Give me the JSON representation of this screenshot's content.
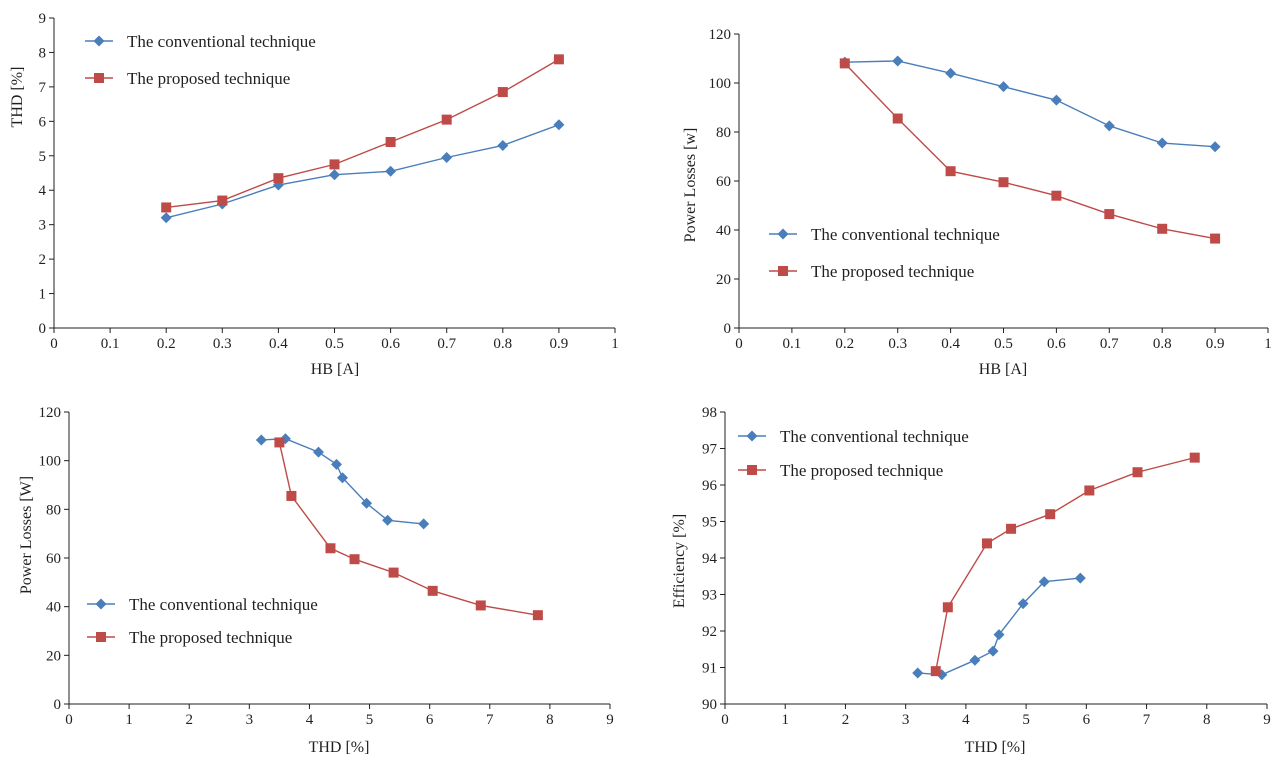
{
  "colors": {
    "conventional": "#4a7ebb",
    "proposed": "#be4b48",
    "axis": "#231f20"
  },
  "chart_data": [
    {
      "type": "line",
      "xlabel": "HB [A]",
      "ylabel": "THD [%]",
      "xlim": [
        0,
        1
      ],
      "ylim": [
        0,
        9
      ],
      "xticks": [
        "0",
        "0.1",
        "0.2",
        "0.3",
        "0.4",
        "0.5",
        "0.6",
        "0.7",
        "0.8",
        "0.9",
        "1"
      ],
      "yticks": [
        "0",
        "1",
        "2",
        "3",
        "4",
        "5",
        "6",
        "7",
        "8",
        "9"
      ],
      "legend_position": "top-left",
      "series": [
        {
          "name": "The conventional technique",
          "marker": "diamond",
          "x": [
            0.2,
            0.3,
            0.4,
            0.5,
            0.6,
            0.7,
            0.8,
            0.9
          ],
          "y": [
            3.2,
            3.6,
            4.15,
            4.45,
            4.55,
            4.95,
            5.3,
            5.9
          ]
        },
        {
          "name": "The proposed technique",
          "marker": "square",
          "x": [
            0.2,
            0.3,
            0.4,
            0.5,
            0.6,
            0.7,
            0.8,
            0.9
          ],
          "y": [
            3.5,
            3.7,
            4.35,
            4.75,
            5.4,
            6.05,
            6.85,
            7.8
          ]
        }
      ]
    },
    {
      "type": "line",
      "xlabel": "HB [A]",
      "ylabel": "Power Losses [w]",
      "xlim": [
        0,
        1
      ],
      "ylim": [
        0,
        120
      ],
      "xticks": [
        "0",
        "0.1",
        "0.2",
        "0.3",
        "0.4",
        "0.5",
        "0.6",
        "0.7",
        "0.8",
        "0.9",
        "1"
      ],
      "yticks": [
        "0",
        "20",
        "40",
        "60",
        "80",
        "100",
        "120"
      ],
      "legend_position": "lower-left",
      "series": [
        {
          "name": "The conventional technique",
          "marker": "diamond",
          "x": [
            0.2,
            0.3,
            0.4,
            0.5,
            0.6,
            0.7,
            0.8,
            0.9
          ],
          "y": [
            108.5,
            109,
            104,
            98.5,
            93,
            82.5,
            75.5,
            74
          ]
        },
        {
          "name": "The proposed technique",
          "marker": "square",
          "x": [
            0.2,
            0.3,
            0.4,
            0.5,
            0.6,
            0.7,
            0.8,
            0.9
          ],
          "y": [
            108,
            85.5,
            64,
            59.5,
            54,
            46.5,
            40.5,
            36.5
          ]
        }
      ]
    },
    {
      "type": "line",
      "xlabel": "THD [%]",
      "ylabel": "Power Losses [W]",
      "xlim": [
        0,
        9
      ],
      "ylim": [
        0,
        120
      ],
      "xticks": [
        "0",
        "1",
        "2",
        "3",
        "4",
        "5",
        "6",
        "7",
        "8",
        "9"
      ],
      "yticks": [
        "0",
        "20",
        "40",
        "60",
        "80",
        "100",
        "120"
      ],
      "legend_position": "lower-left",
      "series": [
        {
          "name": "The conventional technique",
          "marker": "diamond",
          "x": [
            3.2,
            3.6,
            4.15,
            4.45,
            4.55,
            4.95,
            5.3,
            5.9
          ],
          "y": [
            108.5,
            109,
            103.5,
            98.5,
            93,
            82.5,
            75.5,
            74
          ]
        },
        {
          "name": "The proposed technique",
          "marker": "square",
          "x": [
            3.5,
            3.7,
            4.35,
            4.75,
            5.4,
            6.05,
            6.85,
            7.8
          ],
          "y": [
            107.5,
            85.5,
            64,
            59.5,
            54,
            46.5,
            40.5,
            36.5
          ]
        }
      ]
    },
    {
      "type": "line",
      "xlabel": "THD [%]",
      "ylabel": "Efficiency [%]",
      "xlim": [
        0,
        9
      ],
      "ylim": [
        90,
        98
      ],
      "xticks": [
        "0",
        "1",
        "2",
        "3",
        "4",
        "5",
        "6",
        "7",
        "8",
        "9"
      ],
      "yticks": [
        "90",
        "91",
        "92",
        "93",
        "94",
        "95",
        "96",
        "97",
        "98"
      ],
      "legend_position": "top-left",
      "series": [
        {
          "name": "The conventional technique",
          "marker": "diamond",
          "x": [
            3.2,
            3.6,
            4.15,
            4.45,
            4.55,
            4.95,
            5.3,
            5.9
          ],
          "y": [
            90.85,
            90.8,
            91.2,
            91.45,
            91.9,
            92.75,
            93.35,
            93.45
          ]
        },
        {
          "name": "The proposed technique",
          "marker": "square",
          "x": [
            3.5,
            3.7,
            4.35,
            4.75,
            5.4,
            6.05,
            6.85,
            7.8
          ],
          "y": [
            90.9,
            92.65,
            94.4,
            94.8,
            95.2,
            95.85,
            96.35,
            96.75
          ]
        }
      ]
    }
  ]
}
